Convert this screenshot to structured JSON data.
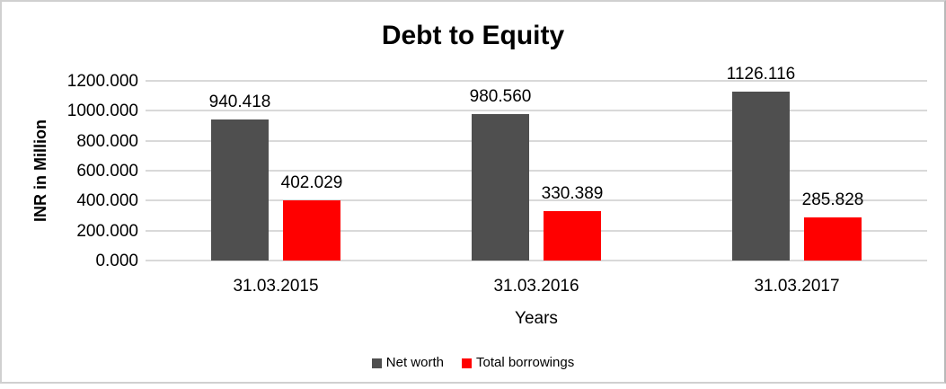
{
  "chart_data": {
    "type": "bar",
    "title": "Debt to Equity",
    "xlabel": "Years",
    "ylabel": "INR in Million",
    "categories": [
      "31.03.2015",
      "31.03.2016",
      "31.03.2017"
    ],
    "series": [
      {
        "name": "Net worth",
        "color": "#4f4f4f",
        "values": [
          940.418,
          980.56,
          1126.116
        ]
      },
      {
        "name": "Total borrowings",
        "color": "#ff0000",
        "values": [
          402.029,
          330.389,
          285.828
        ]
      }
    ],
    "ylim": [
      0,
      1200
    ],
    "ytick_step": 200,
    "tick_decimals": 3,
    "label_decimals": 3,
    "grid": true,
    "gridline_color": "#d9d9d9",
    "legend_position": "bottom",
    "text_color": "#000000",
    "background_color": "#ffffff"
  }
}
